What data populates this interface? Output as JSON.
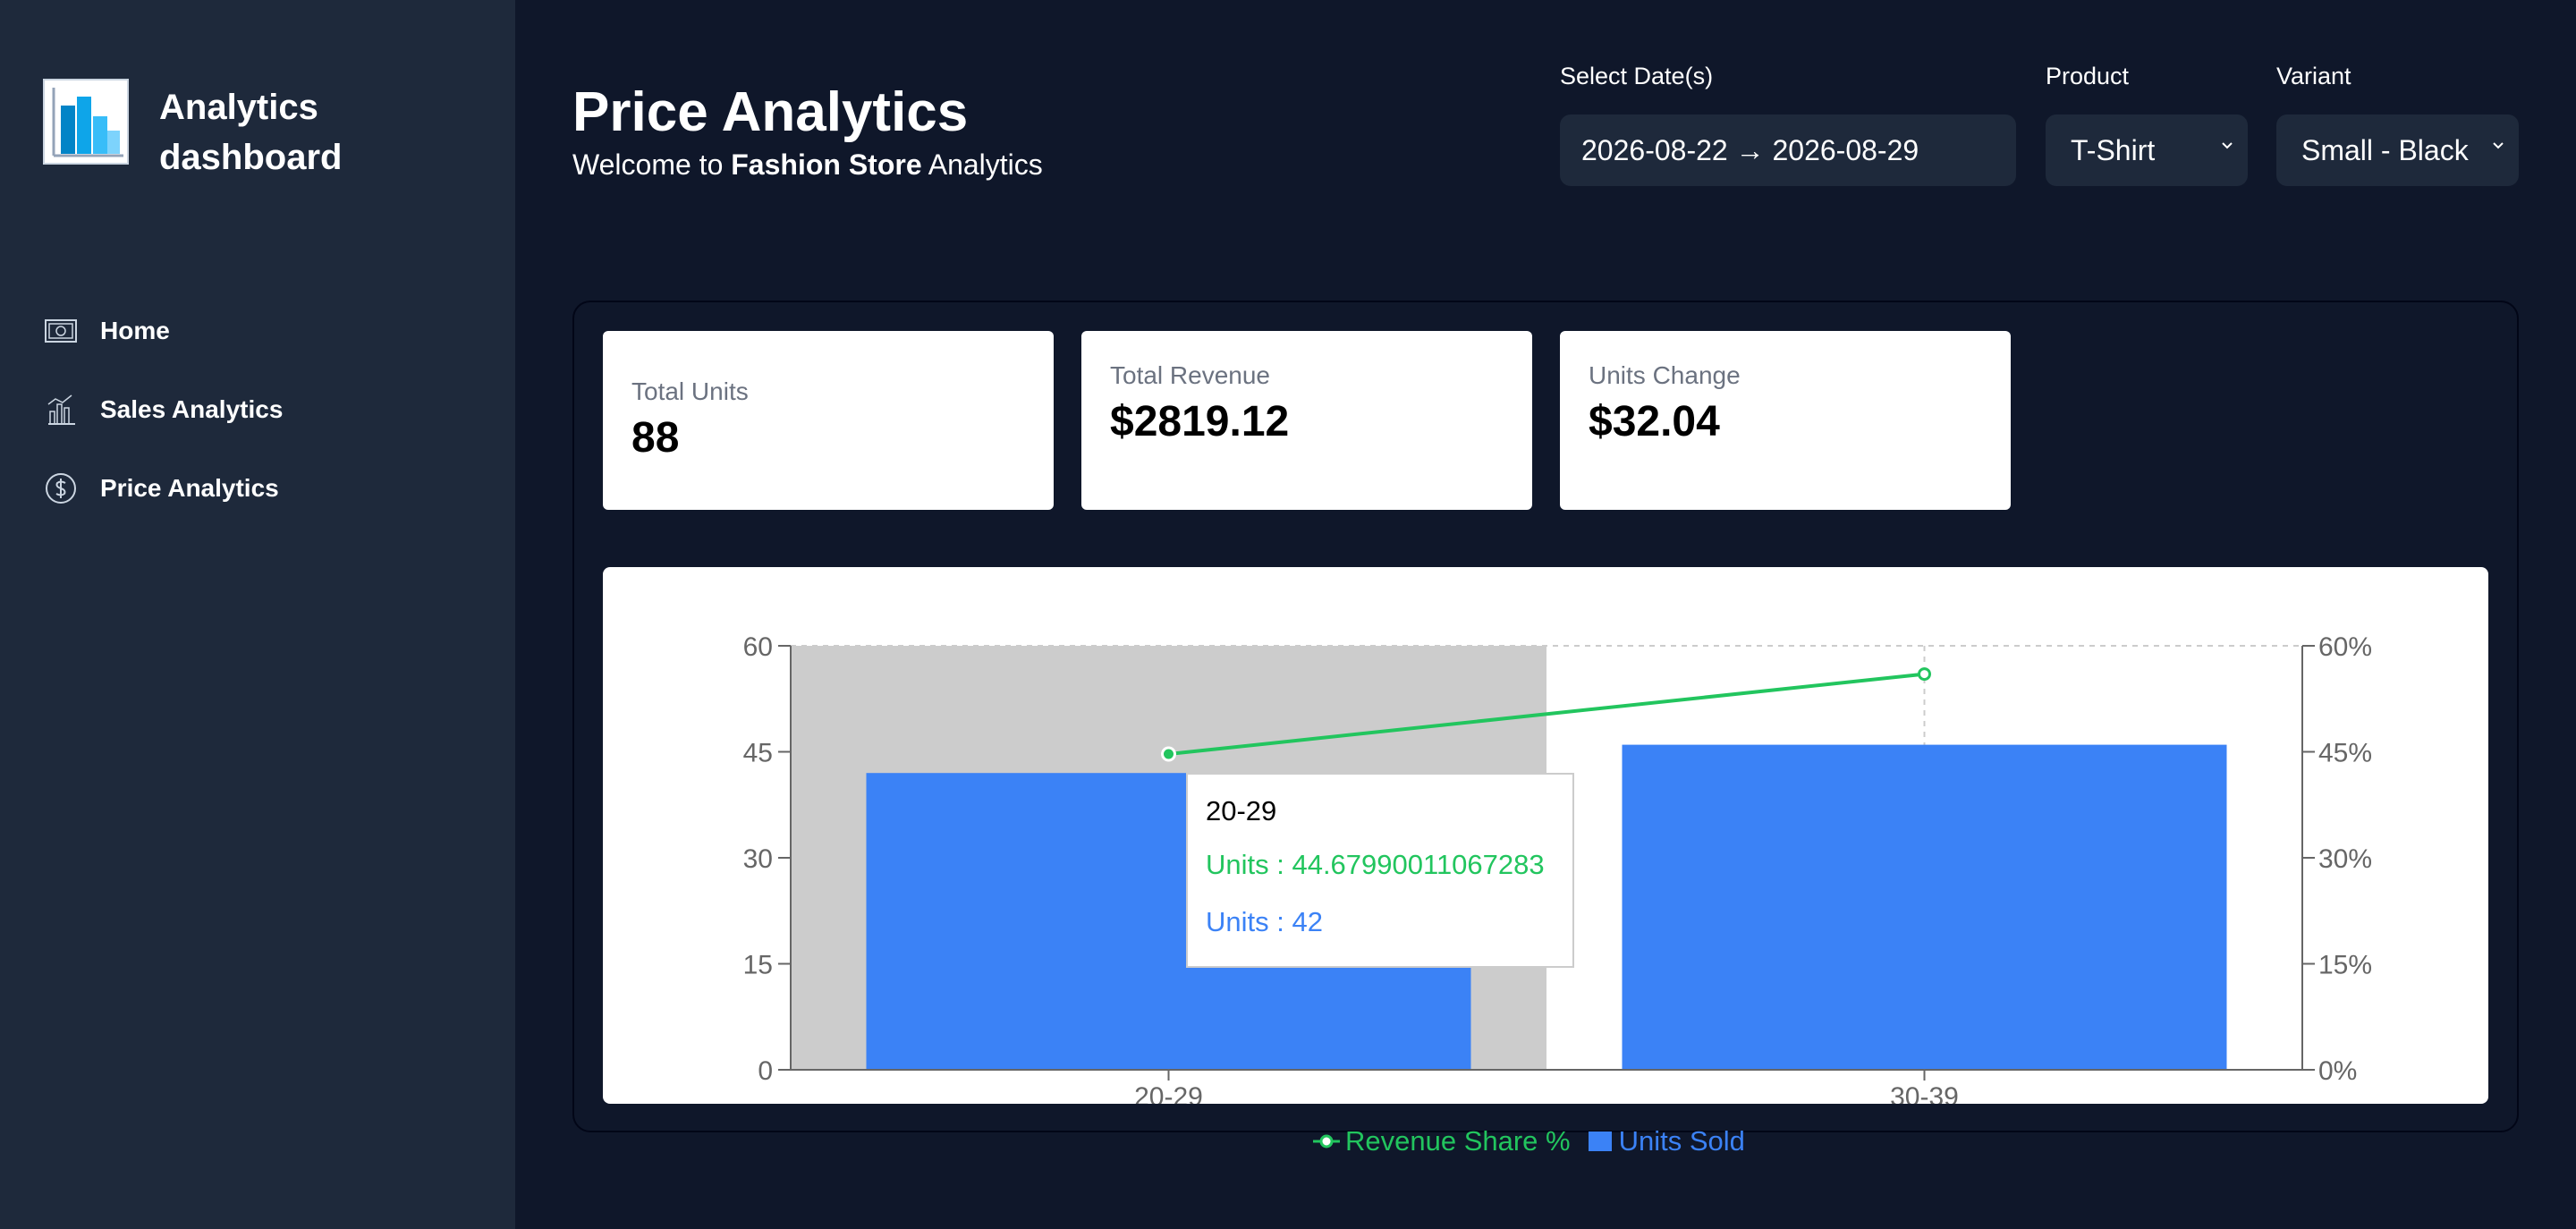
{
  "sidebar": {
    "brand_title": "Analytics dashboard",
    "items": [
      {
        "label": "Home",
        "icon": "money-icon"
      },
      {
        "label": "Sales Analytics",
        "icon": "bar-chart-icon"
      },
      {
        "label": "Price Analytics",
        "icon": "dollar-circle-icon"
      }
    ]
  },
  "header": {
    "title": "Price Analytics",
    "welcome_prefix": "Welcome to",
    "store_name": "Fashion Store",
    "welcome_suffix": "Analytics"
  },
  "filters": {
    "date_label": "Select Date(s)",
    "date_value": "2026-08-22 → 2026-08-29",
    "product_label": "Product",
    "product_value": "T-Shirt",
    "variant_label": "Variant",
    "variant_value": "Small - Black"
  },
  "cards": [
    {
      "label": "Total Units",
      "value": "88"
    },
    {
      "label": "Total Revenue",
      "value": "$2819.12"
    },
    {
      "label": "Units Change",
      "value": "$32.04"
    }
  ],
  "colors": {
    "bar": "#3b82f6",
    "line": "#22c55e",
    "sidebar": "#1e293b",
    "background": "#0f172a"
  },
  "chart_data": {
    "type": "bar",
    "categories": [
      "20-29",
      "30-39"
    ],
    "series": [
      {
        "name": "Units Sold",
        "type": "bar",
        "axis": "left",
        "values": [
          42,
          46
        ]
      },
      {
        "name": "Revenue Share %",
        "type": "line",
        "axis": "right",
        "values": [
          44.67990011067283,
          56
        ]
      }
    ],
    "y_left": {
      "min": 0,
      "max": 60,
      "ticks": [
        "0",
        "15",
        "30",
        "45",
        "60"
      ]
    },
    "y_right": {
      "min": 0,
      "max": 60,
      "ticks": [
        "0%",
        "15%",
        "30%",
        "45%",
        "60%"
      ]
    },
    "highlighted_category_index": 0,
    "legend_position": "bottom",
    "tooltip": {
      "title": "20-29",
      "line1": "Units : 44.67990011067283",
      "line2": "Units : 42"
    }
  }
}
